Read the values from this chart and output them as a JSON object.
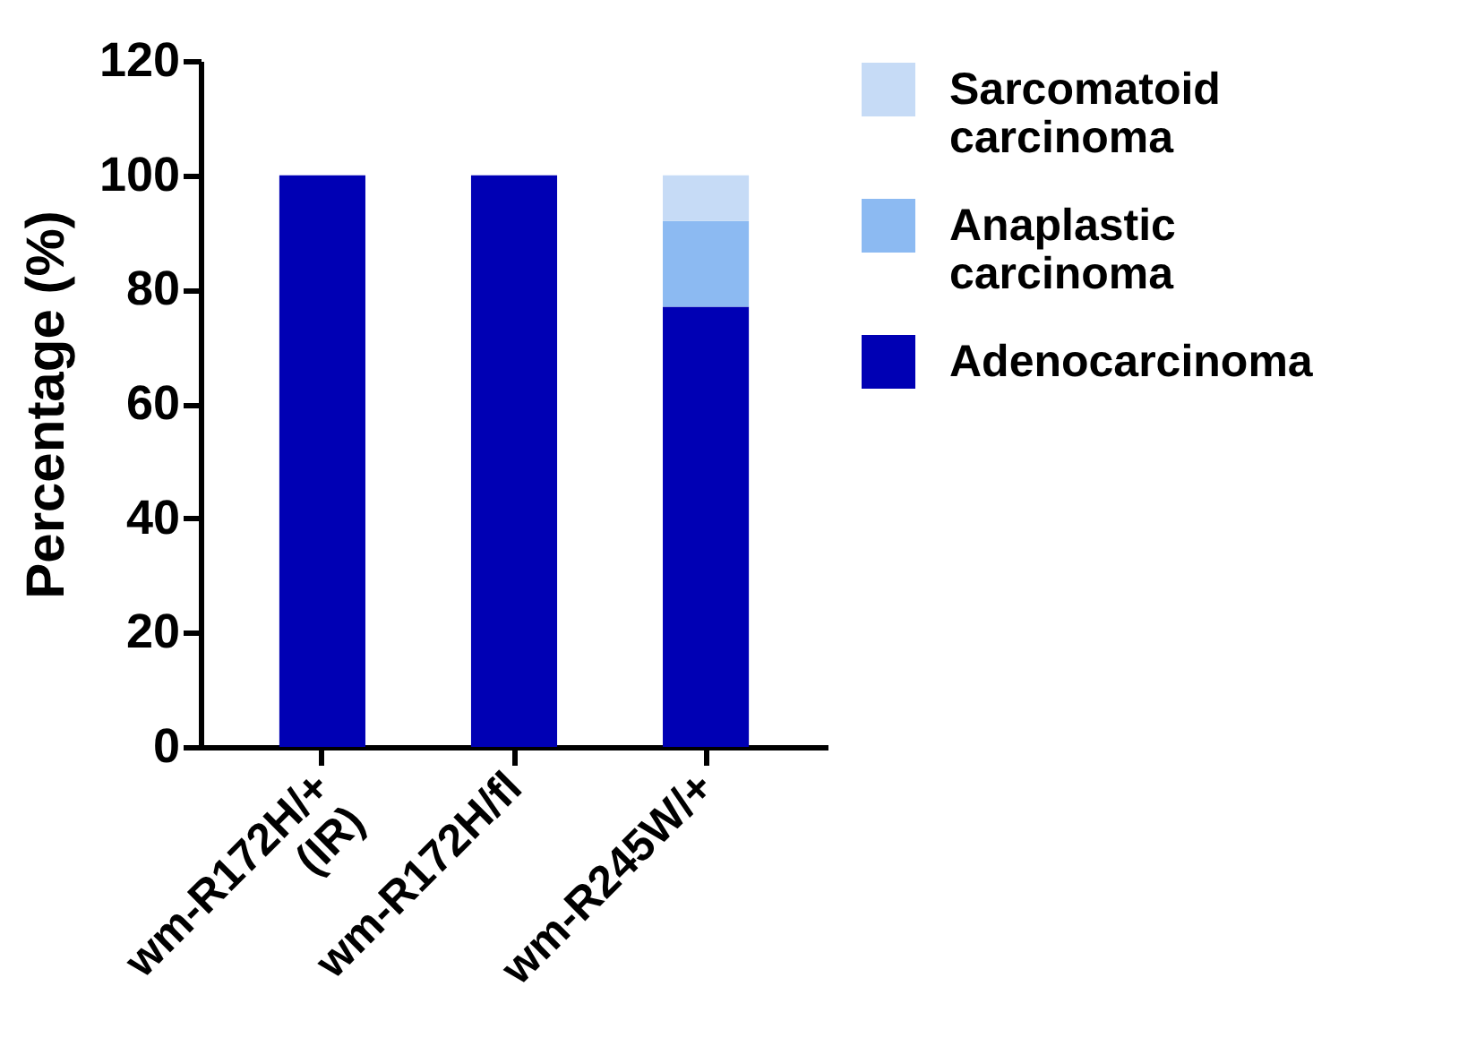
{
  "chart_data": {
    "type": "bar",
    "stacked": true,
    "ylabel": "Percentage (%)",
    "categories": [
      "wm-R172H/+\n(IR)",
      "wm-R172H/fl",
      "wm-R245W/+"
    ],
    "series": [
      {
        "name": "Adenocarcinoma",
        "color": "#0000b4",
        "values": [
          100,
          100,
          77
        ]
      },
      {
        "name": "Anaplastic carcinoma",
        "color": "#8cbaf2",
        "values": [
          0,
          0,
          15
        ]
      },
      {
        "name": "Sarcomatoid carcinoma",
        "color": "#c6dbf6",
        "values": [
          0,
          0,
          8
        ]
      }
    ],
    "ylim": [
      0,
      120
    ],
    "yticks": [
      0,
      20,
      40,
      60,
      80,
      100,
      120
    ],
    "grid": false,
    "legend": "top right"
  }
}
